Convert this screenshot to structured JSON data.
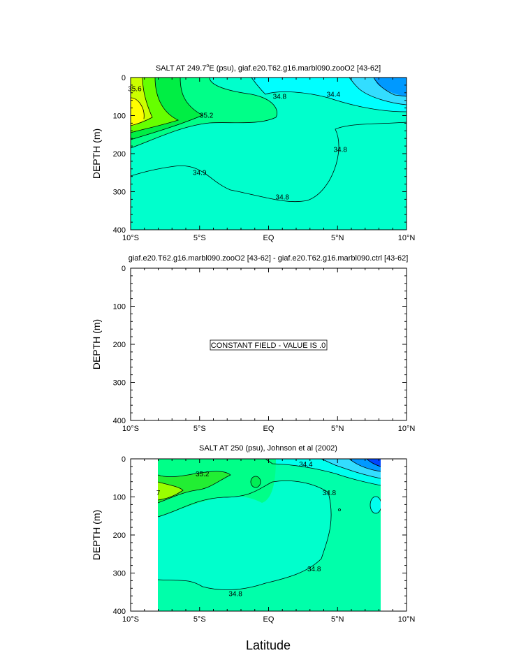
{
  "figure": {
    "x_axis_title": "Latitude",
    "x_ticks": [
      "10°S",
      "5°S",
      "EQ",
      "5°N",
      "10°N"
    ],
    "y_ticks": [
      "0",
      "100",
      "200",
      "300",
      "400"
    ]
  },
  "chart_data": [
    {
      "type": "heatmap",
      "title_main": "SALT AT 249.7",
      "title_sup": "o",
      "title_rest": "E (psu), giaf.e20.T62.g16.marbl090.zooO2 [43-62]",
      "ylabel": "DEPTH (m)",
      "xlim": [
        -10,
        10
      ],
      "ylim": [
        400,
        0
      ],
      "contour_labels": [
        {
          "text": "35.6",
          "lat": -9.7,
          "depth": 30
        },
        {
          "text": "35.2",
          "lat": -4.5,
          "depth": 100
        },
        {
          "text": "34.8",
          "lat": 0.8,
          "depth": 50
        },
        {
          "text": "34.4",
          "lat": 4.7,
          "depth": 45
        },
        {
          "text": "34.8",
          "lat": 5.2,
          "depth": 190
        },
        {
          "text": "34.9",
          "lat": -5.0,
          "depth": 250
        },
        {
          "text": "34.8",
          "lat": 1.0,
          "depth": 315
        }
      ]
    },
    {
      "type": "heatmap",
      "title": "giaf.e20.T62.g16.marbl090.zooO2 [43-62] - giaf.e20.T62.g16.marbl090.ctrl [43-62]",
      "ylabel": "DEPTH (m)",
      "xlim": [
        -10,
        10
      ],
      "ylim": [
        400,
        0
      ],
      "annotation": "CONSTANT FIELD - VALUE IS .0"
    },
    {
      "type": "heatmap",
      "title": "SALT AT 250 (psu), Johnson et al (2002)",
      "ylabel": "DEPTH (m)",
      "xlim": [
        -10,
        10
      ],
      "ylim": [
        400,
        0
      ],
      "data_extent_lat": [
        -8,
        8.2
      ],
      "contour_labels": [
        {
          "text": "35.2",
          "lat": -4.8,
          "depth": 40
        },
        {
          "text": "34.4",
          "lat": 2.7,
          "depth": 15
        },
        {
          "text": "34.8",
          "lat": 4.4,
          "depth": 90
        },
        {
          "text": "34.8",
          "lat": 3.3,
          "depth": 290
        },
        {
          "text": "34.8",
          "lat": -2.4,
          "depth": 355
        },
        {
          "text": "7",
          "lat": -8.0,
          "depth": 90
        }
      ]
    }
  ],
  "colors": {
    "yellow": "#ffff00",
    "yellow_green": "#aaff00",
    "green": "#00ff00",
    "sea_green": "#00ff88",
    "aquamarine": "#00ffcc",
    "cyan": "#00ffff",
    "light_blue": "#00ccff",
    "blue": "#0099ff",
    "deep_blue": "#0055ff",
    "line": "#000000"
  }
}
